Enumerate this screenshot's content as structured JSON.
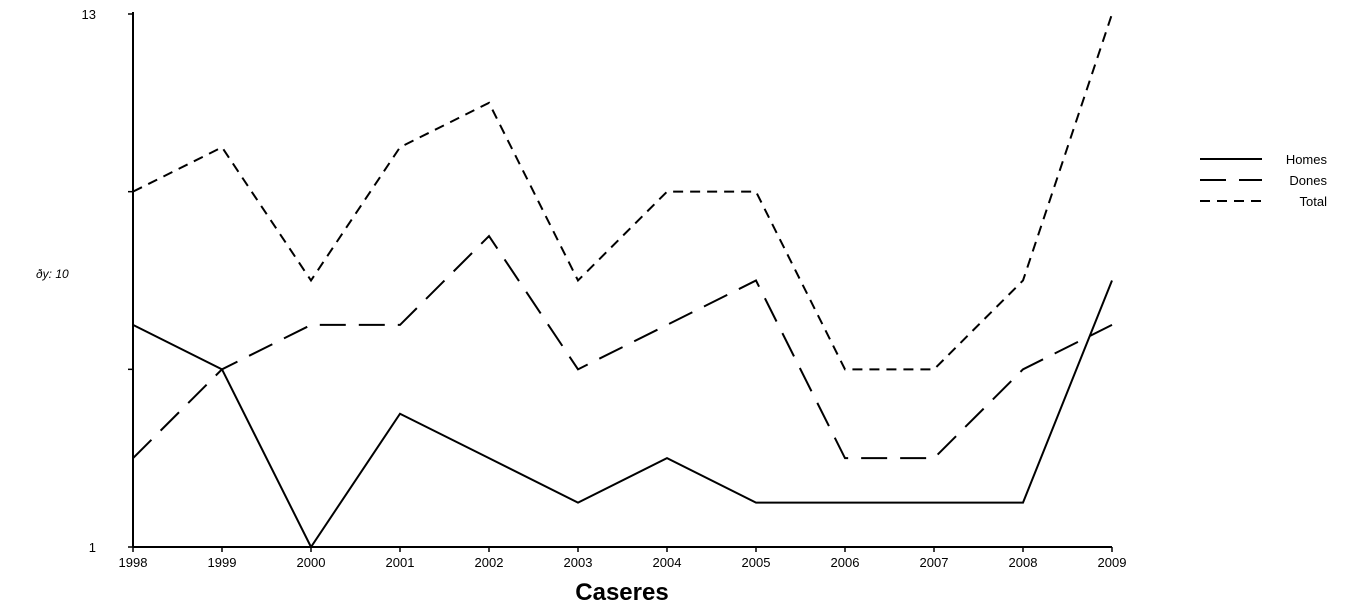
{
  "chart_data": {
    "type": "line",
    "title": "",
    "xlabel": "Caseres",
    "ylabel": "ðy: 10",
    "x": [
      "1998",
      "1999",
      "2000",
      "2001",
      "2002",
      "2003",
      "2004",
      "2005",
      "2006",
      "2007",
      "2008",
      "2009"
    ],
    "ylim": [
      1,
      13
    ],
    "y_tick_labels": [
      "1",
      "13"
    ],
    "grid": false,
    "legend_position": "right",
    "series": [
      {
        "name": "Homes",
        "dash": "solid",
        "values": [
          6,
          5,
          1,
          4,
          3,
          2,
          3,
          2,
          2,
          2,
          2,
          7
        ]
      },
      {
        "name": "Dones",
        "dash": "long-dash",
        "values": [
          3,
          5,
          6,
          6,
          8,
          5,
          6,
          7,
          3,
          3,
          5,
          6
        ]
      },
      {
        "name": "Total",
        "dash": "short-dash",
        "values": [
          9,
          10,
          7,
          10,
          11,
          7,
          9,
          9,
          5,
          5,
          7,
          13
        ]
      }
    ]
  }
}
